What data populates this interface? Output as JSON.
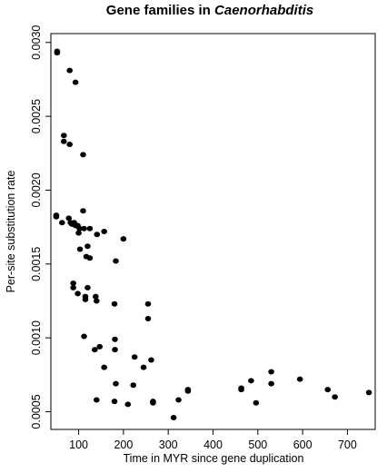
{
  "chart_data": {
    "type": "scatter",
    "title": {
      "prefix": "Gene families in ",
      "italic": "Caenorhabditis"
    },
    "xlabel": "Time in MYR since gene duplication",
    "ylabel": "Per-site substitution rate",
    "xlim": [
      38,
      762
    ],
    "ylim": [
      0.00038,
      0.00306
    ],
    "x_ticks": [
      {
        "value": 100,
        "label": "100"
      },
      {
        "value": 200,
        "label": "200"
      },
      {
        "value": 300,
        "label": "300"
      },
      {
        "value": 400,
        "label": "400"
      },
      {
        "value": 500,
        "label": "500"
      },
      {
        "value": 600,
        "label": "600"
      },
      {
        "value": 700,
        "label": "700"
      }
    ],
    "y_ticks": [
      {
        "value": 0.0005,
        "label": "0.0005"
      },
      {
        "value": 0.001,
        "label": "0.0010"
      },
      {
        "value": 0.0015,
        "label": "0.0015"
      },
      {
        "value": 0.002,
        "label": "0.0020"
      },
      {
        "value": 0.0025,
        "label": "0.0025"
      },
      {
        "value": 0.003,
        "label": "0.0030"
      }
    ],
    "grid": false,
    "legend": "none",
    "series": [
      {
        "points": [
          [
            52,
            0.00294
          ],
          [
            52,
            0.00293
          ],
          [
            80,
            0.00281
          ],
          [
            93,
            0.00273
          ],
          [
            67,
            0.00237
          ],
          [
            67,
            0.00233
          ],
          [
            80,
            0.00231
          ],
          [
            110,
            0.00224
          ],
          [
            50,
            0.00183
          ],
          [
            50,
            0.00182
          ],
          [
            78,
            0.00181
          ],
          [
            63,
            0.00178
          ],
          [
            82,
            0.00178
          ],
          [
            90,
            0.00178
          ],
          [
            93,
            0.00176
          ],
          [
            85,
            0.00177
          ],
          [
            98,
            0.00176
          ],
          [
            110,
            0.00186
          ],
          [
            102,
            0.00174
          ],
          [
            112,
            0.00174
          ],
          [
            100,
            0.00171
          ],
          [
            125,
            0.00174
          ],
          [
            157,
            0.00172
          ],
          [
            141,
            0.0017
          ],
          [
            200,
            0.00167
          ],
          [
            120,
            0.00162
          ],
          [
            103,
            0.0016
          ],
          [
            117,
            0.00155
          ],
          [
            125,
            0.00154
          ],
          [
            183,
            0.00152
          ],
          [
            88,
            0.00137
          ],
          [
            88,
            0.00134
          ],
          [
            120,
            0.00134
          ],
          [
            98,
            0.0013
          ],
          [
            115,
            0.00128
          ],
          [
            115,
            0.00126
          ],
          [
            138,
            0.00128
          ],
          [
            140,
            0.00125
          ],
          [
            180,
            0.00123
          ],
          [
            255,
            0.00123
          ],
          [
            255,
            0.00113
          ],
          [
            112,
            0.00101
          ],
          [
            181,
            0.00099
          ],
          [
            147,
            0.00094
          ],
          [
            136,
            0.00092
          ],
          [
            181,
            0.00092
          ],
          [
            225,
            0.00087
          ],
          [
            245,
            0.0008
          ],
          [
            262,
            0.00085
          ],
          [
            157,
            0.0008
          ],
          [
            183,
            0.00069
          ],
          [
            222,
            0.00068
          ],
          [
            140,
            0.00058
          ],
          [
            180,
            0.00057
          ],
          [
            210,
            0.00055
          ],
          [
            266,
            0.00057
          ],
          [
            266,
            0.00056
          ],
          [
            312,
            0.00046
          ],
          [
            323,
            0.00058
          ],
          [
            344,
            0.00065
          ],
          [
            344,
            0.00064
          ],
          [
            463,
            0.00066
          ],
          [
            463,
            0.00065
          ],
          [
            485,
            0.00071
          ],
          [
            496,
            0.00056
          ],
          [
            530,
            0.00077
          ],
          [
            530,
            0.00069
          ],
          [
            594,
            0.00072
          ],
          [
            656,
            0.00065
          ],
          [
            672,
            0.0006
          ],
          [
            748,
            0.00063
          ]
        ]
      }
    ]
  }
}
